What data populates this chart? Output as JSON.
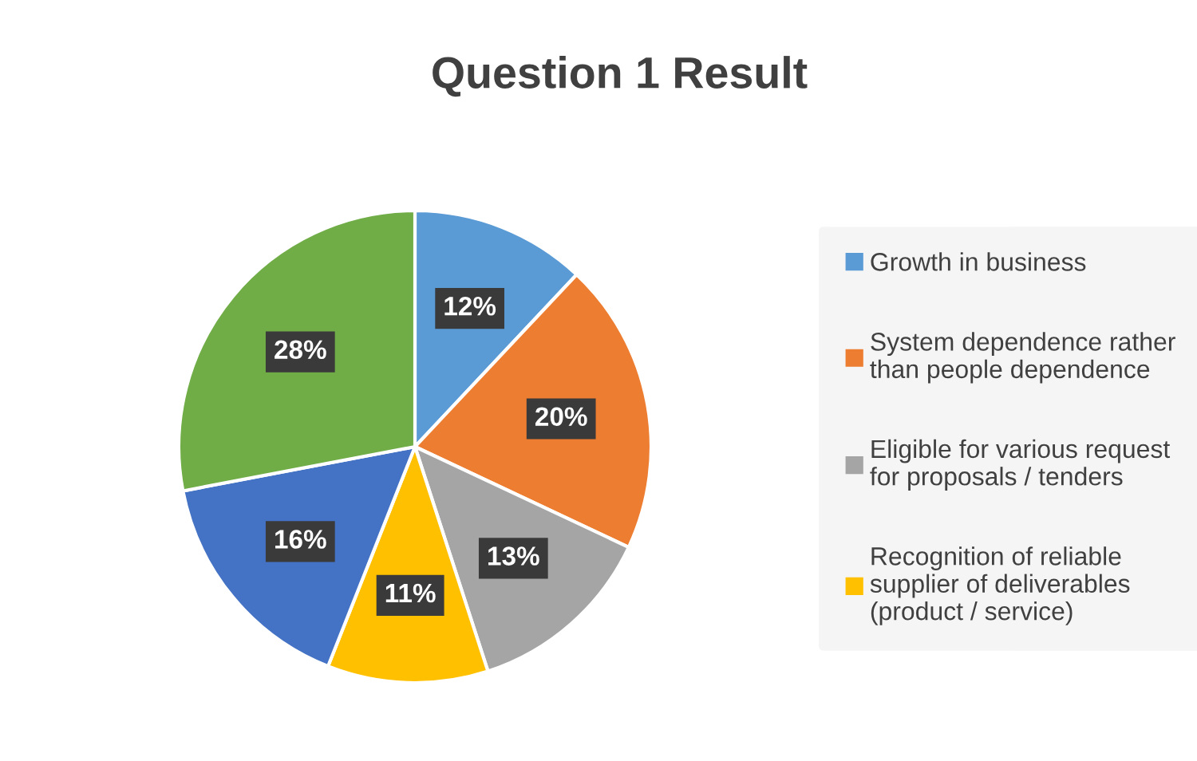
{
  "chart_data": {
    "type": "pie",
    "title": "Question 1 Result",
    "categories": [
      "Growth in business",
      "System dependence rather\nthan people dependence",
      "Eligible for various request\nfor proposals / tenders",
      "Recognition of reliable\nsupplier of deliverables\n(product / service)",
      null,
      null
    ],
    "values": [
      12,
      20,
      13,
      11,
      16,
      28
    ],
    "colors": [
      "#5b9bd5",
      "#ed7d31",
      "#a5a5a5",
      "#ffc000",
      "#4472c4",
      "#70ad47"
    ],
    "value_labels": [
      "12%",
      "20%",
      "13%",
      "11%",
      "16%",
      "28%"
    ],
    "legend": "right"
  }
}
